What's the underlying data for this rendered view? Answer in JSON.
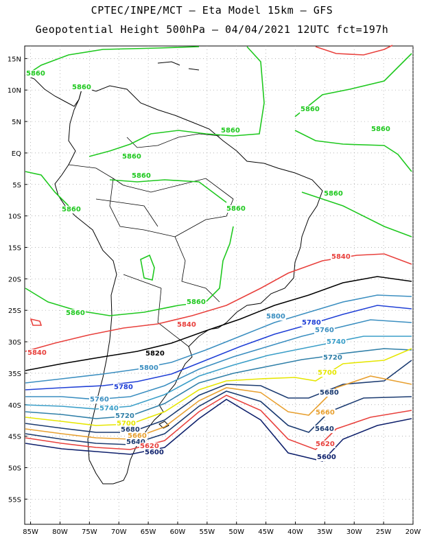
{
  "header": {
    "line1": "CPTEC/INPE/MCT –  Eta Model 15km – GFS",
    "line2": "Geopotential Height 500hPa – 04/04/2021 12UTC fct=197h"
  },
  "map": {
    "lon_range": [
      -86,
      -20
    ],
    "lat_range": [
      17,
      -59
    ],
    "lat_ticks": [
      "15N",
      "10N",
      "5N",
      "EQ",
      "5S",
      "10S",
      "15S",
      "20S",
      "25S",
      "30S",
      "35S",
      "40S",
      "45S",
      "50S",
      "55S"
    ],
    "lon_ticks": [
      "85W",
      "80W",
      "75W",
      "70W",
      "65W",
      "60W",
      "55W",
      "50W",
      "45W",
      "40W",
      "35W",
      "30W",
      "25W",
      "20W"
    ],
    "grid": true
  },
  "contour_labels": [
    {
      "text": "5860",
      "color": "#1ec81e"
    },
    {
      "text": "5860",
      "color": "#1ec81e"
    },
    {
      "text": "5860",
      "color": "#1ec81e"
    },
    {
      "text": "5860",
      "color": "#1ec81e"
    },
    {
      "text": "5860",
      "color": "#1ec81e"
    },
    {
      "text": "5860",
      "color": "#1ec81e"
    },
    {
      "text": "5860",
      "color": "#1ec81e"
    },
    {
      "text": "5860",
      "color": "#1ec81e"
    },
    {
      "text": "5860",
      "color": "#1ec81e"
    },
    {
      "text": "5860",
      "color": "#1ec81e"
    },
    {
      "text": "5860",
      "color": "#1ec81e"
    },
    {
      "text": "5860",
      "color": "#1ec81e"
    },
    {
      "text": "5840",
      "color": "#e8403c"
    },
    {
      "text": "5840",
      "color": "#e8403c"
    },
    {
      "text": "5840",
      "color": "#e8403c"
    },
    {
      "text": "5820",
      "color": "#000000"
    },
    {
      "text": "5800",
      "color": "#3a8ec0"
    },
    {
      "text": "5800",
      "color": "#3a8ec0"
    },
    {
      "text": "5780",
      "color": "#1f3fd6"
    },
    {
      "text": "5780",
      "color": "#1f3fd6"
    },
    {
      "text": "5760",
      "color": "#3a8ec0"
    },
    {
      "text": "5760",
      "color": "#3a8ec0"
    },
    {
      "text": "5740",
      "color": "#3a9ec8"
    },
    {
      "text": "5740",
      "color": "#3a9ec8"
    },
    {
      "text": "5720",
      "color": "#2f7fa8"
    },
    {
      "text": "5720",
      "color": "#2f7fa8"
    },
    {
      "text": "5700",
      "color": "#e6e600"
    },
    {
      "text": "5700",
      "color": "#e6e600"
    },
    {
      "text": "5680",
      "color": "#1a3a70"
    },
    {
      "text": "5680",
      "color": "#1a3a70"
    },
    {
      "text": "5660",
      "color": "#e8a030"
    },
    {
      "text": "5660",
      "color": "#e8a030"
    },
    {
      "text": "5640",
      "color": "#1a3a70"
    },
    {
      "text": "5640",
      "color": "#1a3a70"
    },
    {
      "text": "5620",
      "color": "#e8403c"
    },
    {
      "text": "5620",
      "color": "#e8403c"
    },
    {
      "text": "5600",
      "color": "#0d1f6b"
    },
    {
      "text": "5600",
      "color": "#0d1f6b"
    }
  ]
}
